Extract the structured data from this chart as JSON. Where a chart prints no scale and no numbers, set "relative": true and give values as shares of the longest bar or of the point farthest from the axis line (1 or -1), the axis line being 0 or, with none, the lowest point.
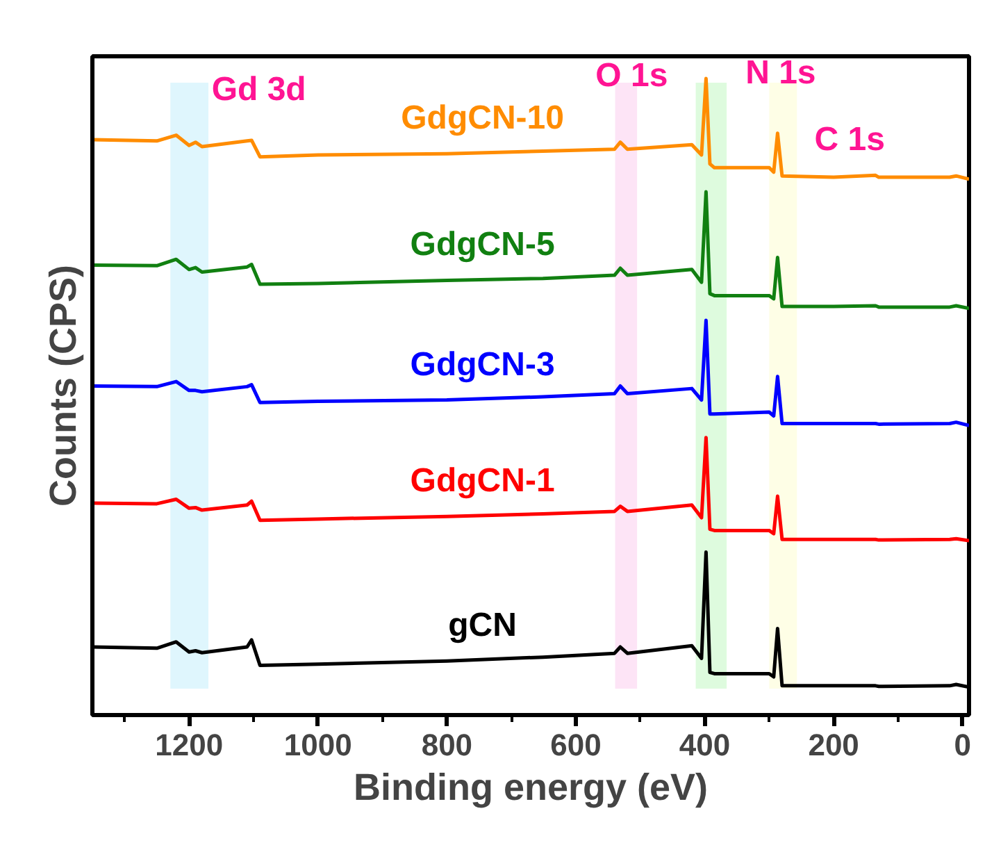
{
  "chart_data": {
    "type": "line",
    "relative": true,
    "xlabel": "Binding energy (eV)",
    "ylabel": "Counts (CPS)",
    "xlim": [
      1350,
      -10
    ],
    "xticks": [
      {
        "value": 1300,
        "label": null
      },
      1200,
      {
        "value": 1100,
        "label": null
      },
      1000,
      {
        "value": 900,
        "label": null
      },
      800,
      {
        "value": 700,
        "label": null
      },
      600,
      {
        "value": 500,
        "label": null
      },
      400,
      {
        "value": 300,
        "label": null
      },
      200,
      {
        "value": 100,
        "label": null
      },
      0
    ],
    "tick_labels": "x",
    "grid": false,
    "marker": "none",
    "line_style": "solid",
    "x": [
      1350,
      1250,
      1220,
      1200,
      1190,
      1180,
      1110,
      1103,
      1090,
      1000,
      800,
      651,
      540,
      531,
      520,
      420,
      405,
      398,
      392,
      385,
      300,
      293,
      287,
      280,
      200,
      135,
      130,
      20,
      10,
      -10
    ],
    "series": [
      {
        "name": "GdgCN-10",
        "color": "#ff8c00",
        "values": [
          0.904,
          0.902,
          0.911,
          0.895,
          0.9,
          0.893,
          0.902,
          0.903,
          0.877,
          0.88,
          0.882,
          0.886,
          0.889,
          0.9,
          0.889,
          0.896,
          0.88,
          1.0,
          0.866,
          0.86,
          0.86,
          0.853,
          0.914,
          0.847,
          0.845,
          0.848,
          0.845,
          0.845,
          0.847,
          0.842
        ]
      },
      {
        "name": "GdgCN-5",
        "color": "#118011",
        "values": [
          0.707,
          0.706,
          0.716,
          0.7,
          0.703,
          0.696,
          0.704,
          0.708,
          0.677,
          0.678,
          0.683,
          0.686,
          0.691,
          0.702,
          0.691,
          0.7,
          0.68,
          0.822,
          0.662,
          0.659,
          0.659,
          0.654,
          0.719,
          0.642,
          0.642,
          0.643,
          0.641,
          0.641,
          0.643,
          0.639
        ]
      },
      {
        "name": "GdgCN-3",
        "color": "#0000ff",
        "values": [
          0.517,
          0.516,
          0.524,
          0.51,
          0.51,
          0.508,
          0.516,
          0.519,
          0.491,
          0.493,
          0.495,
          0.5,
          0.505,
          0.517,
          0.505,
          0.513,
          0.495,
          0.62,
          0.473,
          0.473,
          0.476,
          0.47,
          0.532,
          0.458,
          0.458,
          0.458,
          0.457,
          0.458,
          0.46,
          0.455
        ]
      },
      {
        "name": "GdgCN-1",
        "color": "#ff0000",
        "values": [
          0.333,
          0.332,
          0.339,
          0.325,
          0.326,
          0.322,
          0.33,
          0.336,
          0.306,
          0.308,
          0.312,
          0.316,
          0.32,
          0.328,
          0.32,
          0.33,
          0.31,
          0.436,
          0.292,
          0.29,
          0.29,
          0.285,
          0.344,
          0.276,
          0.276,
          0.276,
          0.275,
          0.276,
          0.277,
          0.274
        ]
      },
      {
        "name": "gCN",
        "color": "#000000",
        "values": [
          0.107,
          0.105,
          0.115,
          0.099,
          0.101,
          0.098,
          0.107,
          0.118,
          0.078,
          0.08,
          0.085,
          0.091,
          0.097,
          0.107,
          0.097,
          0.109,
          0.089,
          0.256,
          0.067,
          0.065,
          0.065,
          0.06,
          0.136,
          0.046,
          0.046,
          0.046,
          0.045,
          0.046,
          0.048,
          0.044
        ]
      }
    ],
    "bands": [
      {
        "axis": "x",
        "from": 1229,
        "to": 1170,
        "color": "#dff6fd"
      },
      {
        "axis": "x",
        "from": 539,
        "to": 505,
        "color": "#fde4f6"
      },
      {
        "axis": "x",
        "from": 414,
        "to": 366,
        "color": "#defbde"
      },
      {
        "axis": "x",
        "from": 300,
        "to": 257,
        "color": "#fefee6"
      }
    ],
    "annotations": [
      "Gd 3d",
      "O 1s",
      "N 1s",
      "C 1s"
    ]
  }
}
